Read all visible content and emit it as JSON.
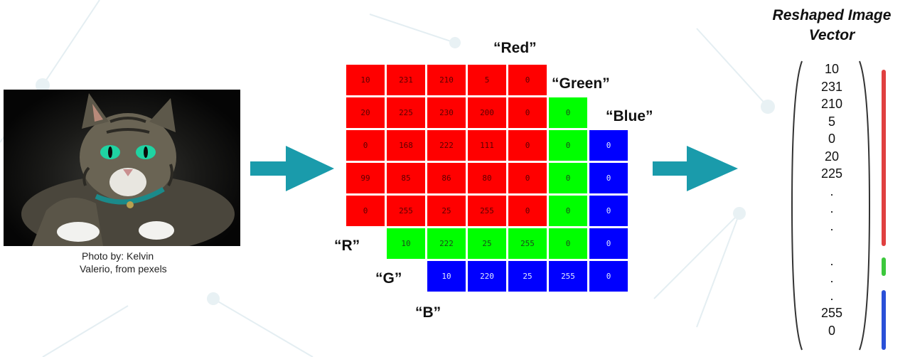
{
  "photo": {
    "caption_line1": "Photo by: Kelvin",
    "caption_line2": "Valerio, from pexels"
  },
  "labels": {
    "red_title": "“Red”",
    "green_title": "“Green”",
    "blue_title": "“Blue”",
    "r": "“R”",
    "g": "“G”",
    "b": "“B”"
  },
  "colors": {
    "red": "#ff0000",
    "green": "#00ff00",
    "blue": "#0000ff",
    "arrow": "#1a9bab"
  },
  "channels": {
    "red": [
      [
        "10",
        "231",
        "210",
        "5",
        "0"
      ],
      [
        "20",
        "225",
        "230",
        "200",
        "0"
      ],
      [
        "0",
        "168",
        "222",
        "111",
        "0"
      ],
      [
        "99",
        "85",
        "86",
        "80",
        "0"
      ],
      [
        "0",
        "255",
        "25",
        "255",
        "0"
      ]
    ],
    "green_right_col": [
      "0",
      "0",
      "0",
      "0",
      "0"
    ],
    "green_bottom_row": [
      "10",
      "222",
      "25",
      "255",
      "0"
    ],
    "blue_right_col": [
      "0",
      "0",
      "0",
      "0",
      "0"
    ],
    "blue_bottom_row": [
      "10",
      "220",
      "25",
      "255",
      "0"
    ]
  },
  "vector": {
    "title_line1": "Reshaped Image",
    "title_line2": "Vector",
    "values": [
      "10",
      "231",
      "210",
      "5",
      "0",
      "20",
      "225",
      ".",
      ".",
      ".",
      "",
      ".",
      ".",
      ".",
      "255",
      "0"
    ]
  }
}
